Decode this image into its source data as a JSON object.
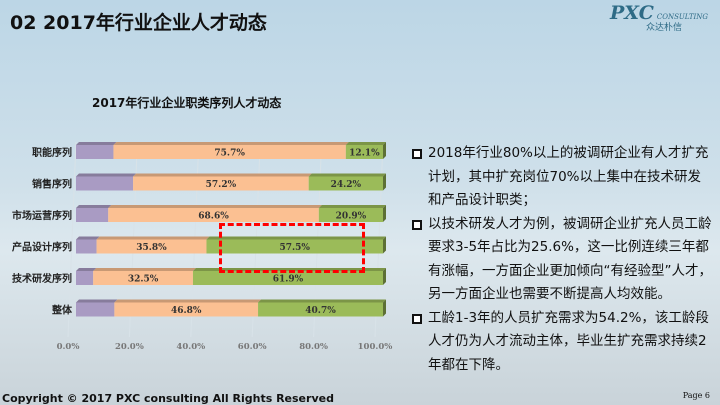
{
  "header": {
    "title": "02 2017年行业企业人才动态",
    "logo_main": "PXC",
    "logo_sub": "CONSULTING",
    "logo_cn": "众达朴信"
  },
  "chart_data": {
    "type": "bar",
    "stacked": true,
    "orientation": "horizontal",
    "title": "2017年行业企业职类序列人才动态",
    "categories": [
      "职能序列",
      "销售序列",
      "市场运营序列",
      "产品设计序列",
      "技术研发序列",
      "整体"
    ],
    "series": [
      {
        "name": "series-1",
        "color": "#a99bc3",
        "values": [
          12.2,
          18.6,
          10.5,
          6.7,
          5.6,
          12.5
        ],
        "show_labels": false
      },
      {
        "name": "series-2",
        "color": "#fbc092",
        "values": [
          75.7,
          57.2,
          68.6,
          35.8,
          32.5,
          46.8
        ],
        "show_labels": true
      },
      {
        "name": "series-3",
        "color": "#9bbb59",
        "values": [
          12.1,
          24.2,
          20.9,
          57.5,
          61.9,
          40.7
        ],
        "show_labels": true
      }
    ],
    "xlim": [
      0,
      100
    ],
    "xticks": [
      "0.0%",
      "20.0%",
      "40.0%",
      "60.0%",
      "80.0%",
      "100.0%"
    ],
    "legend": "none"
  },
  "notes": [
    "2018年行业80%以上的被调研企业有人才扩充计划，其中扩充岗位70%以上集中在技术研发和产品设计职类；",
    "以技术研发人才为例，被调研企业扩充人员工龄要求3-5年占比为25.6%，这一比例连续三年都有涨幅，一方面企业更加倾向“有经验型”人才，另一方面企业也需要不断提高人均效能。",
    "工龄1-3年的人员扩充需求为54.2%，该工龄段人才仍为人才流动主体，毕业生扩充需求持续2年都在下降。"
  ],
  "footer": {
    "copyright": "Copyright © 2017 PXC consulting All Rights Reserved",
    "page": "Page 6"
  }
}
